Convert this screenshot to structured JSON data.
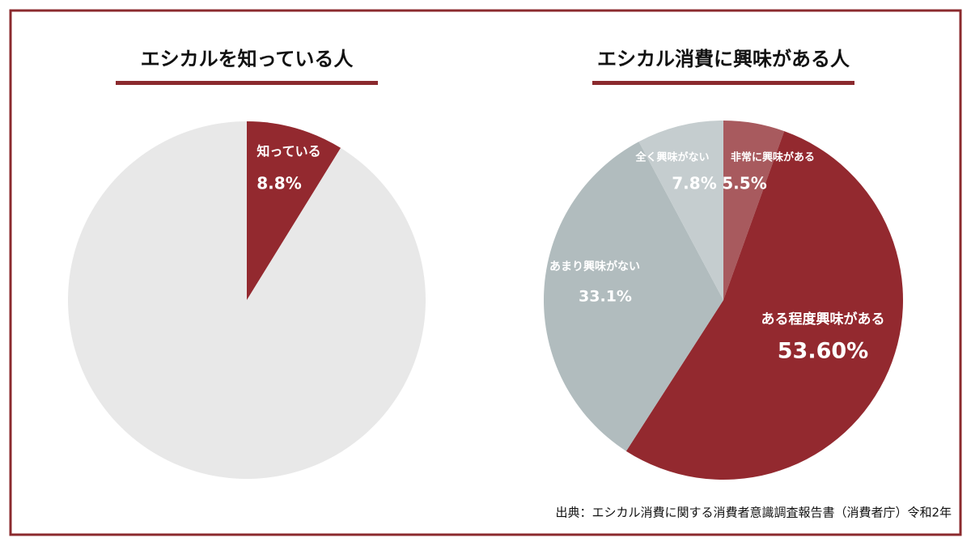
{
  "chart_data": [
    {
      "type": "pie",
      "title": "エシカルを知っている人",
      "categories": [
        "知っている",
        null
      ],
      "values": [
        8.8,
        91.2
      ],
      "value_labels": [
        "8.8%",
        null
      ],
      "colors": [
        "#93292f",
        "#e8e8e8"
      ]
    },
    {
      "type": "pie",
      "title": "エシカル消費に興味がある人",
      "categories": [
        "非常に興味がある",
        "ある程度興味がある",
        "あまり興味がない",
        "全く興味がない"
      ],
      "values": [
        5.5,
        53.6,
        33.1,
        7.8
      ],
      "value_labels": [
        "5.5%",
        "53.60%",
        "33.1%",
        "7.8%"
      ],
      "colors": [
        "#a85a5e",
        "#93292f",
        "#b1bcbe",
        "#c5cdcf"
      ]
    }
  ],
  "source": "出典：エシカル消費に関する消費者意識調査報告書（消費者庁）令和2年"
}
